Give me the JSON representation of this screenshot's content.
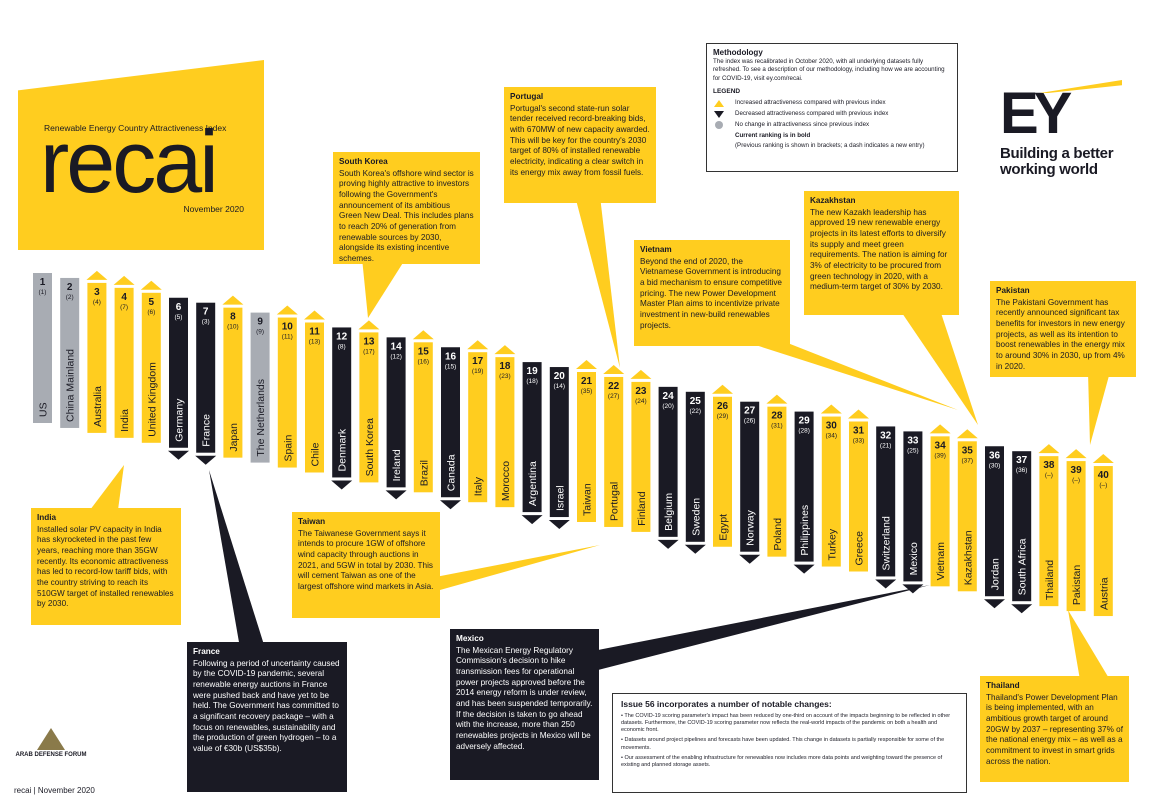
{
  "hero": {
    "index_title": "Renewable Energy Country Attractiveness Index",
    "wordmark": "recai",
    "date": "November 2020"
  },
  "methodology": {
    "title": "Methodology",
    "text": "The index was recalibrated in October 2020, with all underlying datasets fully refreshed. To see a description of our methodology, including how we are accounting for COVID-19, visit ey.com/recai.",
    "legend_title": "LEGEND",
    "legend": [
      {
        "symbol": "up",
        "text": "Increased attractiveness compared with previous index"
      },
      {
        "symbol": "down",
        "text": "Decreased attractiveness compared with previous index"
      },
      {
        "symbol": "same",
        "text": "No change in attractiveness since previous index"
      }
    ],
    "bold_note": "Current ranking is in bold",
    "paren_note": "(Previous ranking is shown in brackets; a dash indicates a new entry)"
  },
  "brand": {
    "logo": "EY",
    "tagline_1": "Building a better",
    "tagline_2": "working world"
  },
  "colors": {
    "yellow": "#FFCD1F",
    "dark": "#1a1a24",
    "grey": "#a8acb3"
  },
  "chart_data": {
    "type": "bar",
    "categories": [
      "US",
      "China Mainland",
      "Australia",
      "India",
      "United Kingdom",
      "Germany",
      "France",
      "Japan",
      "The Netherlands",
      "Spain",
      "Chile",
      "Denmark",
      "South Korea",
      "Ireland",
      "Brazil",
      "Canada",
      "Italy",
      "Morocco",
      "Argentina",
      "Israel",
      "Taiwan",
      "Portugal",
      "Finland",
      "Belgium",
      "Sweden",
      "Egypt",
      "Norway",
      "Poland",
      "Philippines",
      "Turkey",
      "Greece",
      "Switzerland",
      "Mexico",
      "Vietnam",
      "Kazakhstan",
      "Jordan",
      "South Africa",
      "Thailand",
      "Pakistan",
      "Austria"
    ],
    "ranks": [
      1,
      2,
      3,
      4,
      5,
      6,
      7,
      8,
      9,
      10,
      11,
      12,
      13,
      14,
      15,
      16,
      17,
      18,
      19,
      20,
      21,
      22,
      23,
      24,
      25,
      26,
      27,
      28,
      29,
      30,
      31,
      32,
      33,
      34,
      35,
      36,
      37,
      38,
      39,
      40
    ],
    "previous": [
      "(1)",
      "(2)",
      "(4)",
      "(7)",
      "(6)",
      "(5)",
      "(3)",
      "(10)",
      "(9)",
      "(11)",
      "(13)",
      "(8)",
      "(17)",
      "(12)",
      "(16)",
      "(15)",
      "(19)",
      "(23)",
      "(18)",
      "(14)",
      "(35)",
      "(27)",
      "(24)",
      "(20)",
      "(22)",
      "(29)",
      "(26)",
      "(31)",
      "(28)",
      "(34)",
      "(33)",
      "(21)",
      "(25)",
      "(39)",
      "(37)",
      "(30)",
      "(36)",
      "(–)",
      "(–)",
      "(–)"
    ],
    "movement": [
      "same",
      "same",
      "up",
      "up",
      "up",
      "down",
      "down",
      "up",
      "same",
      "up",
      "up",
      "down",
      "up",
      "down",
      "up",
      "down",
      "up",
      "up",
      "down",
      "down",
      "up",
      "up",
      "up",
      "down",
      "down",
      "up",
      "down",
      "up",
      "down",
      "up",
      "up",
      "down",
      "down",
      "up",
      "up",
      "down",
      "down",
      "up",
      "up",
      "up"
    ]
  },
  "callouts": {
    "south_korea": {
      "title": "South Korea",
      "text": "South Korea's offshore wind sector is proving highly attractive to investors following the Government's announcement of its ambitious Green New Deal. This includes plans to reach 20% of generation from renewable sources by 2030, alongside its existing incentive schemes."
    },
    "portugal": {
      "title": "Portugal",
      "text": "Portugal's second state-run solar tender received record-breaking bids, with 670MW of new capacity awarded. This will be key for the country's 2030 target of 80% of installed renewable electricity, indicating a clear switch in its energy mix away from fossil fuels."
    },
    "vietnam": {
      "title": "Vietnam",
      "text": "Beyond the end of 2020, the Vietnamese Government is introducing a bid mechanism to ensure competitive pricing. The new Power Development Master Plan aims to incentivize private investment in new-build renewables projects."
    },
    "kazakhstan": {
      "title": "Kazakhstan",
      "text": "The new Kazakh leadership has approved 19 new renewable energy projects in its latest efforts to diversify its supply and meet green requirements. The nation is aiming for 3% of electricity to be procured from green technology in 2020, with a medium-term target of 30% by 2030."
    },
    "pakistan": {
      "title": "Pakistan",
      "text": "The Pakistani Government has recently announced significant tax benefits for investors in new energy projects, as well as its intention to boost renewables in the energy mix to around 30% in 2030, up from 4% in 2020."
    },
    "india": {
      "title": "India",
      "text": "Installed solar PV capacity in India has skyrocketed in the past few years, reaching more than 35GW recently. Its economic attractiveness has led to record-low tariff bids, with the country striving to reach its 510GW target of installed renewables by 2030."
    },
    "taiwan": {
      "title": "Taiwan",
      "text": "The Taiwanese Government says it intends to procure 1GW of offshore wind capacity through auctions in 2021, and 5GW in total by 2030. This will cement Taiwan as one of the largest offshore wind markets in Asia."
    },
    "france": {
      "title": "France",
      "text": "Following a period of uncertainty caused by the COVID-19 pandemic, several renewable energy auctions in France were pushed back and have yet to be held. The Government has committed to a significant recovery package – with a focus on renewables, sustainability and the production of green hydrogen – to a value of €30b (US$35b)."
    },
    "mexico": {
      "title": "Mexico",
      "text": "The Mexican Energy Regulatory Commission's decision to hike transmission fees for operational power projects approved before the 2014 energy reform is under review, and has been suspended temporarily. If the decision is taken to go ahead with the increase, more than 250 renewables projects in Mexico will be adversely affected."
    },
    "thailand": {
      "title": "Thailand",
      "text": "Thailand's Power Development Plan is being implemented, with an ambitious growth target of around 20GW by 2037 – representing 37% of the national energy mix – as well as a commitment to invest in smart grids across the nation."
    }
  },
  "issue": {
    "title": "Issue 56 incorporates a number of notable changes:",
    "bullets": [
      "The COVID-19 scoring parameter's impact has been reduced by one-third on account of the impacts beginning to be reflected in other datasets. Furthermore, the COVID-19 scoring parameter now reflects the real-world impacts of the pandemic on both a health and economic front.",
      "Datasets around project pipelines and forecasts have been updated. This change in datasets is partially responsible for some of the movements.",
      "Our assessment of the enabling infrastructure for renewables now includes more data points and weighting toward the presence of existing and planned storage assets."
    ]
  },
  "footer": "recai | November 2020",
  "watermark": "ARAB DEFENSE FORUM"
}
